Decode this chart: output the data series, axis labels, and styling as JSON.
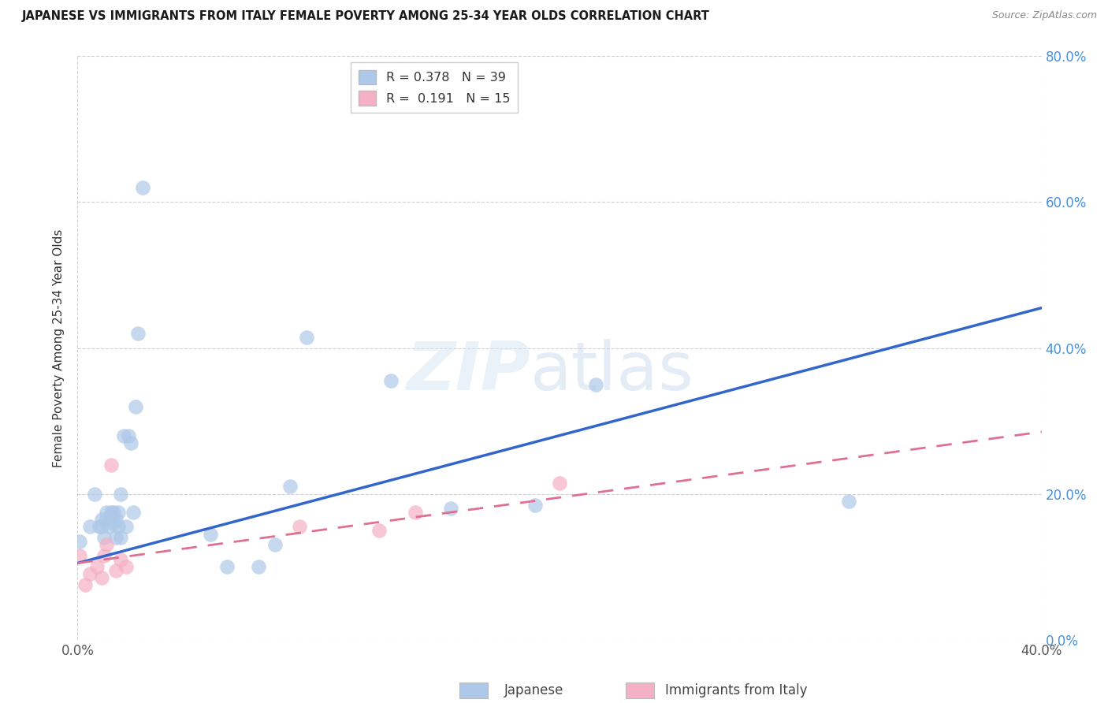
{
  "title": "JAPANESE VS IMMIGRANTS FROM ITALY FEMALE POVERTY AMONG 25-34 YEAR OLDS CORRELATION CHART",
  "source": "Source: ZipAtlas.com",
  "ylabel": "Female Poverty Among 25-34 Year Olds",
  "xlabel_japanese": "Japanese",
  "xlabel_italy": "Immigrants from Italy",
  "xlim": [
    0.0,
    0.4
  ],
  "ylim": [
    0.0,
    0.8
  ],
  "ytick_positions": [
    0.0,
    0.2,
    0.4,
    0.6,
    0.8
  ],
  "ytick_labels": [
    "0.0%",
    "20.0%",
    "40.0%",
    "60.0%",
    "80.0%"
  ],
  "xtick_positions": [
    0.0,
    0.4
  ],
  "xtick_labels": [
    "0.0%",
    "40.0%"
  ],
  "japanese_R": 0.378,
  "japanese_N": 39,
  "italy_R": 0.191,
  "italy_N": 15,
  "japanese_color": "#adc8e8",
  "italy_color": "#f5b0c5",
  "japanese_line_color": "#3366cc",
  "italy_line_color": "#e07090",
  "japanese_x": [
    0.001,
    0.005,
    0.007,
    0.009,
    0.01,
    0.01,
    0.011,
    0.012,
    0.012,
    0.013,
    0.014,
    0.014,
    0.015,
    0.015,
    0.016,
    0.016,
    0.017,
    0.017,
    0.018,
    0.018,
    0.019,
    0.02,
    0.021,
    0.022,
    0.023,
    0.024,
    0.025,
    0.027,
    0.055,
    0.062,
    0.075,
    0.082,
    0.088,
    0.095,
    0.13,
    0.155,
    0.19,
    0.215,
    0.32
  ],
  "japanese_y": [
    0.135,
    0.155,
    0.2,
    0.155,
    0.155,
    0.165,
    0.14,
    0.165,
    0.175,
    0.155,
    0.17,
    0.175,
    0.16,
    0.175,
    0.14,
    0.165,
    0.155,
    0.175,
    0.14,
    0.2,
    0.28,
    0.155,
    0.28,
    0.27,
    0.175,
    0.32,
    0.42,
    0.62,
    0.145,
    0.1,
    0.1,
    0.13,
    0.21,
    0.415,
    0.355,
    0.18,
    0.185,
    0.35,
    0.19
  ],
  "italy_x": [
    0.001,
    0.003,
    0.005,
    0.008,
    0.01,
    0.011,
    0.012,
    0.014,
    0.016,
    0.018,
    0.02,
    0.092,
    0.125,
    0.14,
    0.2
  ],
  "italy_y": [
    0.115,
    0.075,
    0.09,
    0.1,
    0.085,
    0.115,
    0.13,
    0.24,
    0.095,
    0.11,
    0.1,
    0.155,
    0.15,
    0.175,
    0.215
  ],
  "jap_line_x0": 0.0,
  "jap_line_y0": 0.105,
  "jap_line_x1": 0.4,
  "jap_line_y1": 0.455,
  "ita_line_x0": 0.0,
  "ita_line_y0": 0.105,
  "ita_line_x1": 0.4,
  "ita_line_y1": 0.285
}
